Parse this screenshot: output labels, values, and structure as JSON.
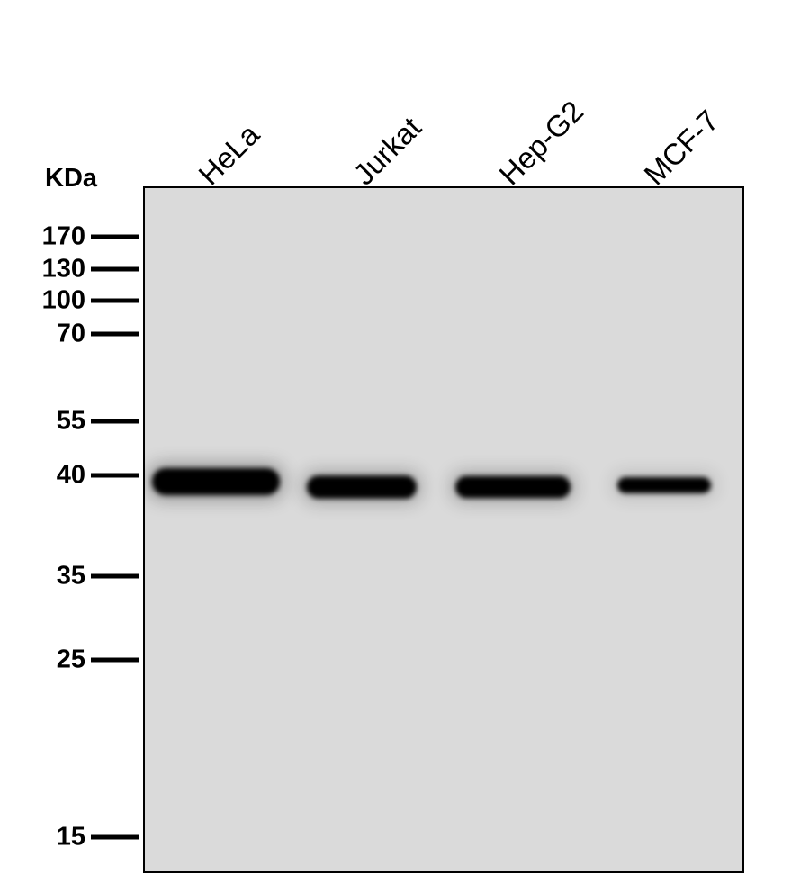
{
  "unit_label": "KDa",
  "lanes": [
    {
      "label": "HeLa",
      "band_kda": 40,
      "intensity": 1.0
    },
    {
      "label": "Jurkat",
      "band_kda": 40,
      "intensity": 0.8
    },
    {
      "label": "Hep-G2",
      "band_kda": 40,
      "intensity": 0.75
    },
    {
      "label": "MCF-7",
      "band_kda": 40,
      "intensity": 0.45
    }
  ],
  "markers": [
    "170",
    "130",
    "100",
    "70",
    "55",
    "40",
    "35",
    "25",
    "15"
  ],
  "colors": {
    "membrane": "#dadada",
    "band": "#000000"
  }
}
